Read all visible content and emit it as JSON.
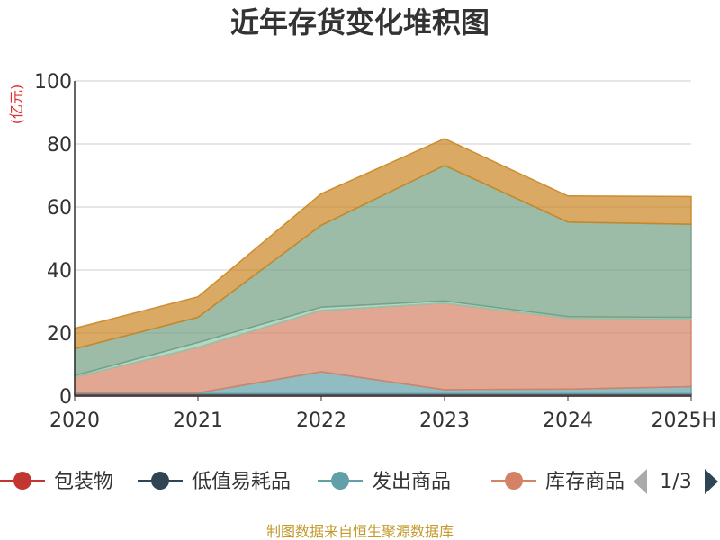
{
  "chart_data": {
    "type": "area",
    "stacked": true,
    "title": "近年存货变化堆积图",
    "unit_label": "(亿元)",
    "x": [
      "2020",
      "2021",
      "2022",
      "2023",
      "2024",
      "2025H"
    ],
    "ylim": [
      0,
      100
    ],
    "yticks": [
      0,
      20,
      40,
      60,
      80,
      100
    ],
    "grid": true,
    "series": [
      {
        "name": "包装物",
        "color": "#c23531",
        "values": [
          0.5,
          0.5,
          0.5,
          0.5,
          0.5,
          0.5
        ]
      },
      {
        "name": "低值易耗品",
        "color": "#2f4554",
        "values": [
          0.2,
          0.2,
          0.2,
          0.2,
          0.2,
          0.2
        ]
      },
      {
        "name": "发出商品",
        "color": "#61a0a8",
        "values": [
          0.3,
          0.3,
          7.0,
          1.3,
          1.5,
          2.3
        ]
      },
      {
        "name": "库存商品",
        "color": "#d48265",
        "values": [
          5.0,
          14.5,
          19.5,
          27.5,
          22.5,
          21.5
        ]
      },
      {
        "name": "",
        "color": "#91c7ae",
        "values": [
          0.5,
          1.5,
          1.0,
          0.7,
          0.5,
          0.5
        ]
      },
      {
        "name": "",
        "color": "#749f83",
        "values": [
          8.5,
          8.0,
          26.0,
          43.0,
          30.0,
          29.5
        ]
      },
      {
        "name": "",
        "color": "#ca8622",
        "values": [
          6.5,
          6.5,
          10.0,
          8.5,
          8.3,
          8.8
        ]
      }
    ],
    "legend": {
      "position": "bottom",
      "visible_items": [
        "包装物",
        "低值易耗品",
        "发出商品",
        "库存商品"
      ],
      "page": "1/3"
    },
    "source": "制图数据来自恒生聚源数据库"
  }
}
